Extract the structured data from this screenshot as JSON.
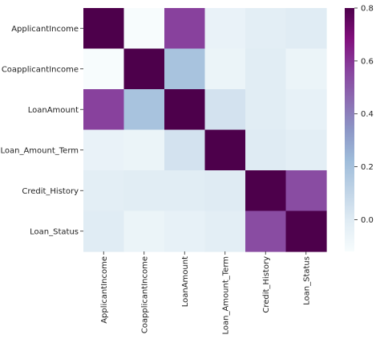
{
  "chart_data": {
    "type": "heatmap",
    "title": "",
    "xlabel": "",
    "ylabel": "",
    "row_labels": [
      "ApplicantIncome",
      "CoapplicantIncome",
      "LoanAmount",
      "Loan_Amount_Term",
      "Credit_History",
      "Loan_Status"
    ],
    "column_labels": [
      "ApplicantIncome",
      "CoapplicantIncome",
      "LoanAmount",
      "Loan_Amount_Term",
      "Credit_History",
      "Loan_Status"
    ],
    "values": [
      [
        1.0,
        -0.12,
        0.57,
        -0.05,
        -0.02,
        -0.005
      ],
      [
        -0.12,
        1.0,
        0.19,
        -0.06,
        -0.01,
        -0.06
      ],
      [
        0.57,
        0.19,
        1.0,
        0.04,
        -0.01,
        -0.04
      ],
      [
        -0.05,
        -0.06,
        0.04,
        1.0,
        0.0,
        -0.02
      ],
      [
        -0.02,
        -0.01,
        -0.01,
        0.0,
        1.0,
        0.54
      ],
      [
        -0.005,
        -0.06,
        -0.04,
        -0.02,
        0.54,
        1.0
      ]
    ],
    "color_range": [
      -0.12,
      0.8
    ],
    "colorbar_ticks": [
      {
        "value": 0.0,
        "label": "0.0"
      },
      {
        "value": 0.2,
        "label": "0.2"
      },
      {
        "value": 0.4,
        "label": "0.4"
      },
      {
        "value": 0.6,
        "label": "0.6"
      },
      {
        "value": 0.8,
        "label": "0.8"
      }
    ],
    "colormap": "BuPu",
    "colormap_stops": [
      {
        "t": 0.0,
        "color": "#f7fcfd"
      },
      {
        "t": 0.125,
        "color": "#e0ecf4"
      },
      {
        "t": 0.25,
        "color": "#bfd3e6"
      },
      {
        "t": 0.375,
        "color": "#9ebcda"
      },
      {
        "t": 0.5,
        "color": "#8c96c6"
      },
      {
        "t": 0.625,
        "color": "#8c6bb1"
      },
      {
        "t": 0.75,
        "color": "#88419d"
      },
      {
        "t": 0.875,
        "color": "#810f7c"
      },
      {
        "t": 1.0,
        "color": "#4d004b"
      }
    ],
    "grid": false,
    "legend": "colorbar-right"
  }
}
